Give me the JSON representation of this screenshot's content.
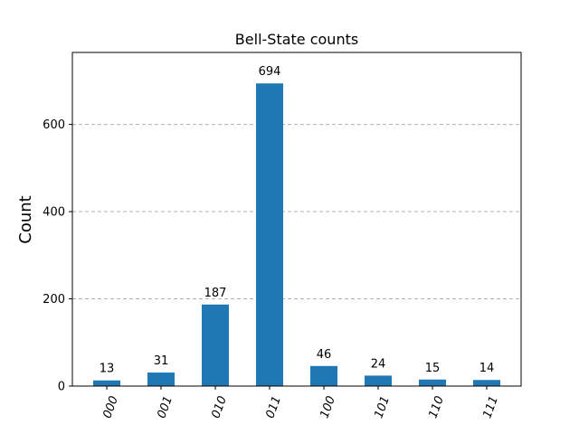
{
  "chart_data": {
    "type": "bar",
    "title": "Bell-State counts",
    "xlabel": "",
    "ylabel": "Count",
    "categories": [
      "000",
      "001",
      "010",
      "011",
      "100",
      "101",
      "110",
      "111"
    ],
    "values": [
      13,
      31,
      187,
      694,
      46,
      24,
      15,
      14
    ],
    "ylim": [
      0,
      765
    ],
    "yticks": [
      "0",
      "200",
      "400",
      "600"
    ],
    "grid": "horizontal-dashed",
    "bar_color": "#1f77b4",
    "grid_color": "#b0b0b0"
  }
}
